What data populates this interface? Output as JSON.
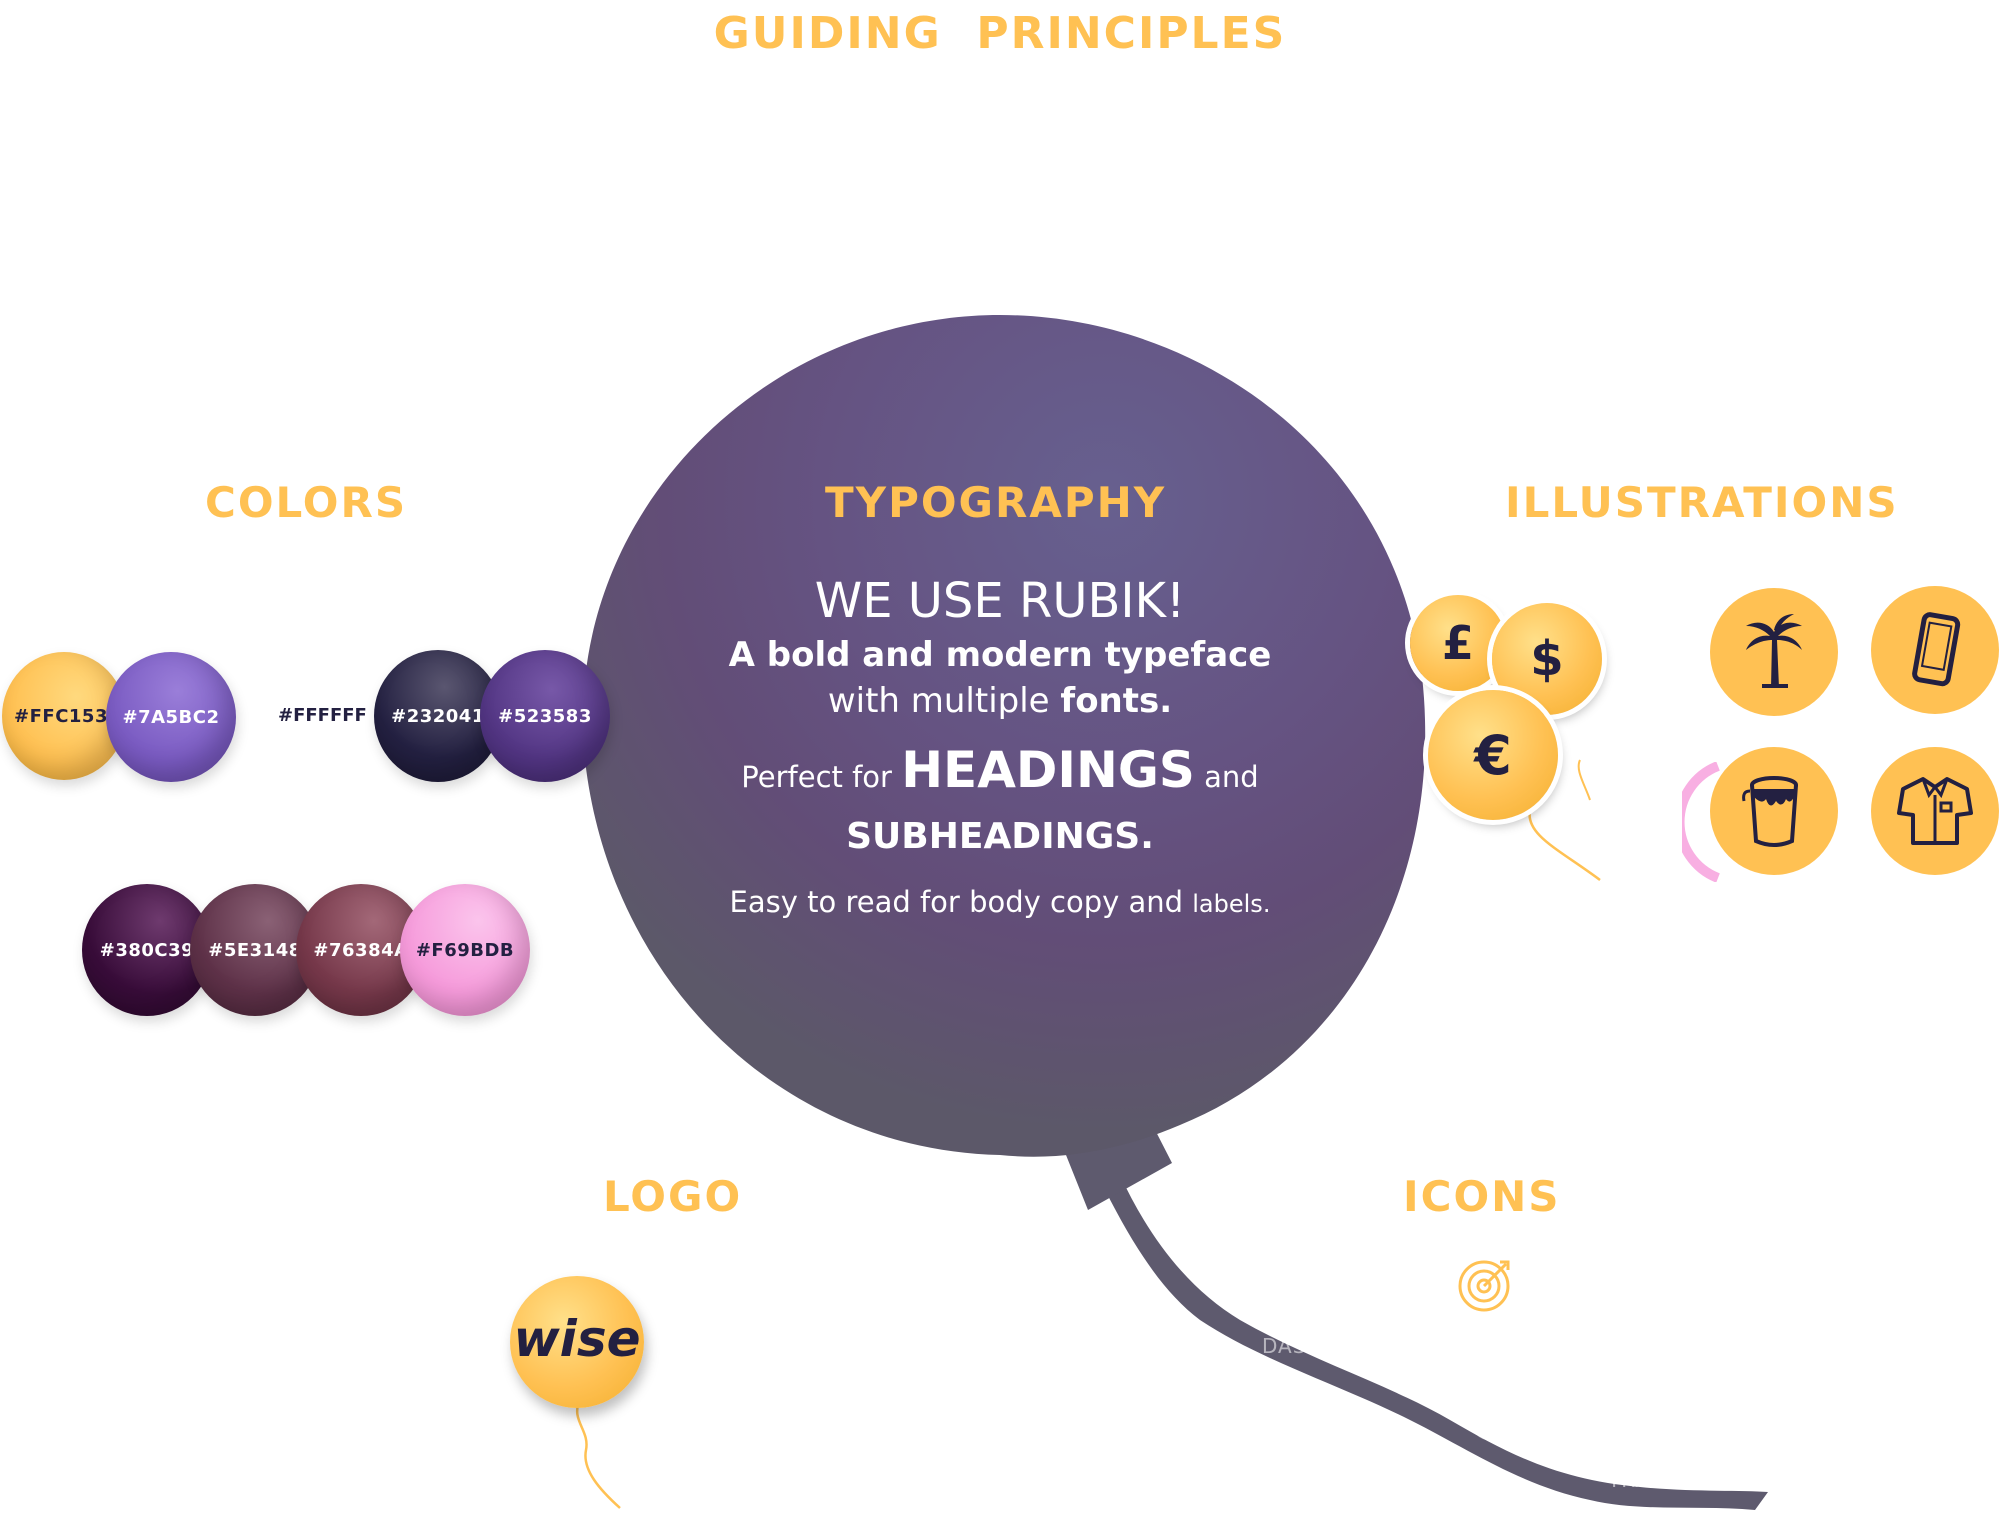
{
  "header": {
    "title": "GUIDING  PRINCIPLES"
  },
  "sections": {
    "colors": "COLORS",
    "typography": "TYPOGRAPHY",
    "illustrations": "ILLUSTRATIONS",
    "logo": "LOGO",
    "icons": "ICONS"
  },
  "colors": {
    "row1": [
      {
        "hex": "#FFC153",
        "label": "#FFC153",
        "text": "#232041"
      },
      {
        "hex": "#7A5BC2",
        "label": "#7A5BC2",
        "text": "#ffffff"
      }
    ],
    "white_label": "#FFFFFF",
    "row2": [
      {
        "hex": "#232041",
        "label": "#232041",
        "text": "#ffffff"
      },
      {
        "hex": "#523583",
        "label": "#523583",
        "text": "#ffffff"
      }
    ],
    "row3": [
      {
        "hex": "#380C39",
        "label": "#380C39",
        "text": "#ffffff"
      },
      {
        "hex": "#5E3148",
        "label": "#5E3148",
        "text": "#ffffff"
      },
      {
        "hex": "#76384A",
        "label": "#76384A",
        "text": "#ffffff"
      },
      {
        "hex": "#F69BDB",
        "label": "#F69BDB",
        "text": "#232041"
      }
    ]
  },
  "typography": {
    "line1": "WE USE RUBIK!",
    "line2": "A bold and modern typeface",
    "line3_a": "with multiple ",
    "line3_b": "fonts.",
    "line4_a": "Perfect for ",
    "line4_b": "HEADINGS",
    "line4_c": " and",
    "line5": "SUBHEADINGS.",
    "line6_a": "Easy to read for body copy and ",
    "line6_b": "labels."
  },
  "currency": {
    "pound": "£",
    "dollar": "$",
    "euro": "€"
  },
  "illustrations": [
    "palm-tree-icon",
    "smartphone-icon",
    "paint-bucket-icon",
    "shirt-icon"
  ],
  "logo": {
    "text": "wise"
  },
  "icons": {
    "dashboard_label": "DASHBOARD",
    "trash_label": "TRASH",
    "icon": "target-icon"
  },
  "palette": {
    "accent": "#FFC153",
    "balloon": "#5E5A6E",
    "dark": "#232041"
  }
}
